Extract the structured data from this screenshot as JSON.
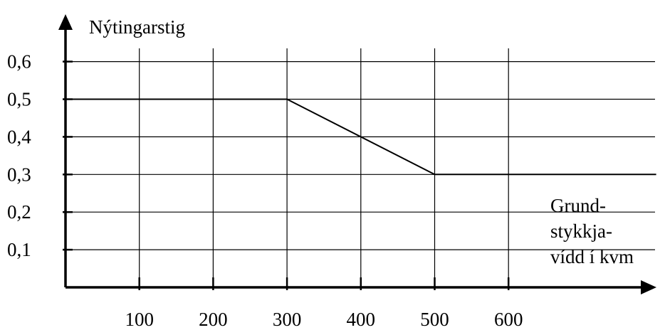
{
  "chart_data": {
    "type": "line",
    "ylabel": "Nýtingarstig",
    "xlabel": [
      "Grund-",
      "stykkja-",
      "vídd í kvm"
    ],
    "x_ticks": [
      100,
      200,
      300,
      400,
      500,
      600
    ],
    "x_tick_labels": [
      "100",
      "200",
      "300",
      "400",
      "500",
      "600"
    ],
    "y_ticks": [
      0.1,
      0.2,
      0.3,
      0.4,
      0.5,
      0.6
    ],
    "y_tick_labels": [
      "0,1",
      "0,2",
      "0,3",
      "0,4",
      "0,5",
      "0,6"
    ],
    "xlim": [
      0,
      800
    ],
    "ylim": [
      0,
      0.7
    ],
    "grid": true,
    "series": [
      {
        "x": [
          0,
          300,
          500,
          800
        ],
        "y": [
          0.5,
          0.5,
          0.3,
          0.3
        ],
        "color": "#000000"
      }
    ]
  }
}
